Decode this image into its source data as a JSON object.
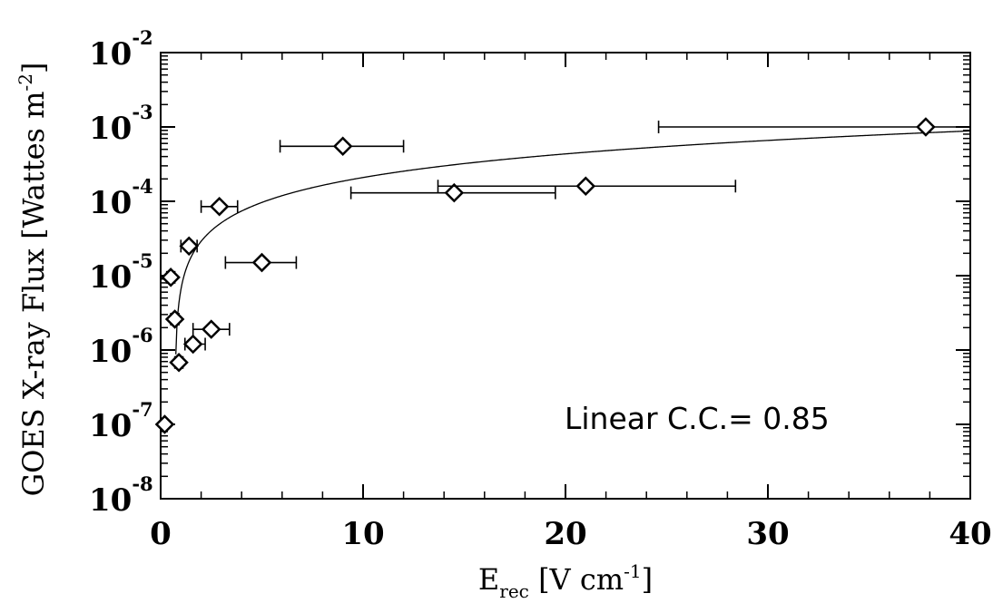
{
  "chart_data": {
    "type": "scatter",
    "title": "",
    "xlabel": {
      "base": "E",
      "sub": "rec",
      "rest": " [V cm",
      "sup": "-1",
      "end": "]"
    },
    "ylabel": {
      "main": "GOES X-ray Flux [Wattes m",
      "sup": "-2",
      "end": "]"
    },
    "xlim": [
      0,
      40
    ],
    "ylim_exponents": [
      -8,
      -2
    ],
    "yscale": "log",
    "x_ticks": [
      "0",
      "10",
      "20",
      "30",
      "40"
    ],
    "y_ticks": [
      {
        "base": "10",
        "exp": "-8"
      },
      {
        "base": "10",
        "exp": "-7"
      },
      {
        "base": "10",
        "exp": "-6"
      },
      {
        "base": "10",
        "exp": "-5"
      },
      {
        "base": "10",
        "exp": "-4"
      },
      {
        "base": "10",
        "exp": "-3"
      },
      {
        "base": "10",
        "exp": "-2"
      }
    ],
    "points": [
      {
        "x": 0.2,
        "y": 1e-07,
        "xerr_low": 0.1,
        "xerr_high": 0.3
      },
      {
        "x": 0.5,
        "y": 9.5e-06,
        "xerr_low": 0.3,
        "xerr_high": 0.7
      },
      {
        "x": 0.7,
        "y": 2.6e-06,
        "xerr_low": 0.5,
        "xerr_high": 0.9
      },
      {
        "x": 0.9,
        "y": 6.8e-07,
        "xerr_low": 0.7,
        "xerr_high": 1.1
      },
      {
        "x": 1.4,
        "y": 2.5e-05,
        "xerr_low": 1.0,
        "xerr_high": 1.8
      },
      {
        "x": 1.6,
        "y": 1.2e-06,
        "xerr_low": 1.2,
        "xerr_high": 2.2
      },
      {
        "x": 2.5,
        "y": 1.9e-06,
        "xerr_low": 1.6,
        "xerr_high": 3.4
      },
      {
        "x": 2.9,
        "y": 8.5e-05,
        "xerr_low": 2.0,
        "xerr_high": 3.8
      },
      {
        "x": 5.0,
        "y": 1.5e-05,
        "xerr_low": 3.2,
        "xerr_high": 6.7
      },
      {
        "x": 9.0,
        "y": 0.00055,
        "xerr_low": 5.9,
        "xerr_high": 12.0
      },
      {
        "x": 14.5,
        "y": 0.00013,
        "xerr_low": 9.4,
        "xerr_high": 19.5
      },
      {
        "x": 21.0,
        "y": 0.00016,
        "xerr_low": 13.7,
        "xerr_high": 28.4
      },
      {
        "x": 37.8,
        "y": 0.001,
        "xerr_low": 24.6,
        "xerr_high": 40.0
      }
    ],
    "fit_line": {
      "type": "linear",
      "intercept": -1.6e-05,
      "slope": 2.25e-05
    },
    "annotation": "Linear C.C.= 0.85",
    "grid": false,
    "legend": "none"
  }
}
